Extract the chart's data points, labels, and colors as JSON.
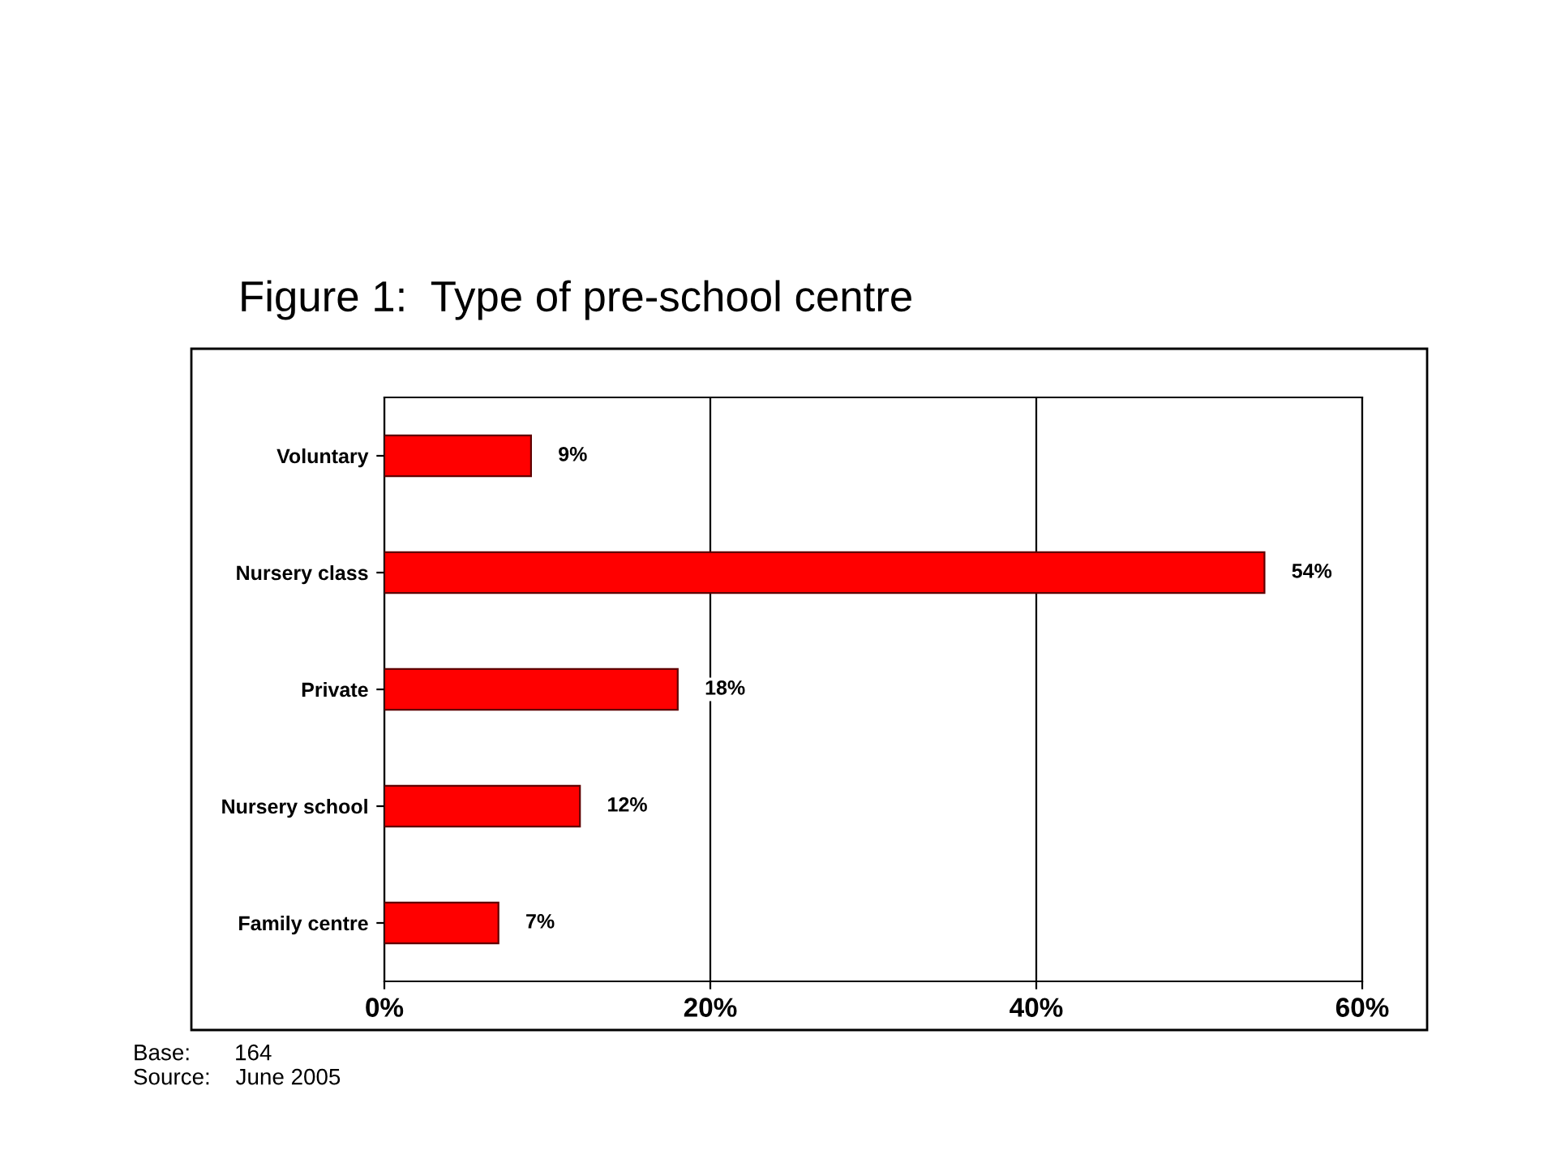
{
  "chart_data": {
    "type": "bar",
    "orientation": "horizontal",
    "title": "Figure 1:  Type of pre-school centre",
    "categories": [
      "Voluntary",
      "Nursery class",
      "Private",
      "Nursery school",
      "Family centre"
    ],
    "values": [
      9,
      54,
      18,
      12,
      7
    ],
    "value_labels": [
      "9%",
      "54%",
      "18%",
      "12%",
      "7%"
    ],
    "color": "#ff0000",
    "xlim": [
      0,
      60
    ],
    "xticks": [
      {
        "value": 0,
        "label": "0%"
      },
      {
        "value": 20,
        "label": "20%"
      },
      {
        "value": 40,
        "label": "40%"
      },
      {
        "value": 60,
        "label": "60%"
      }
    ],
    "grid": "x",
    "annotations": [
      "Base:       164",
      "Source:    June 2005"
    ]
  }
}
